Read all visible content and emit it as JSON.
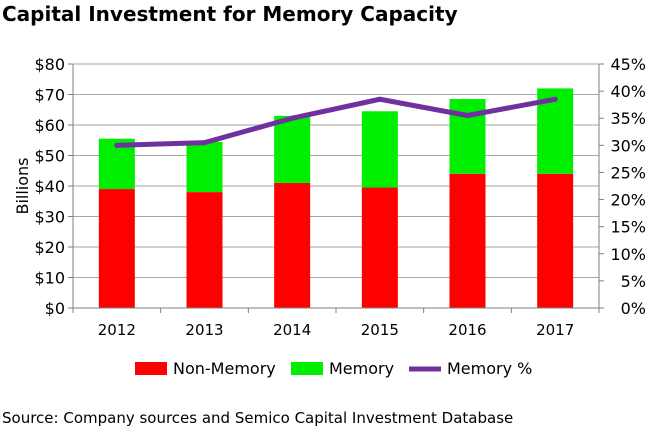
{
  "chart_data": {
    "type": "bar",
    "title": "Capital Investment for Memory Capacity",
    "categories": [
      "2012",
      "2013",
      "2014",
      "2015",
      "2016",
      "2017"
    ],
    "ylabel": "Billions",
    "ylim": [
      0,
      80
    ],
    "y_ticks": [
      "$0",
      "$10",
      "$20",
      "$30",
      "$40",
      "$50",
      "$60",
      "$70",
      "$80"
    ],
    "y2lim": [
      0,
      45
    ],
    "y2_ticks": [
      "0%",
      "5%",
      "10%",
      "15%",
      "20%",
      "25%",
      "30%",
      "35%",
      "40%",
      "45%"
    ],
    "series": [
      {
        "name": "Non-Memory",
        "kind": "bar",
        "stacked": true,
        "color": "#ff0000",
        "values": [
          39,
          38,
          41,
          39.5,
          44,
          44
        ]
      },
      {
        "name": "Memory",
        "kind": "bar",
        "stacked": true,
        "color": "#00ee00",
        "values": [
          16.5,
          16.5,
          22,
          25,
          24.5,
          28
        ]
      },
      {
        "name": "Memory %",
        "kind": "line",
        "axis": "right",
        "color": "#7030a0",
        "values": [
          30,
          30.5,
          35,
          38.5,
          35.5,
          38.5
        ]
      }
    ],
    "legend": "bottom",
    "grid": true
  },
  "source": "Source: Company sources and Semico Capital Investment Database"
}
